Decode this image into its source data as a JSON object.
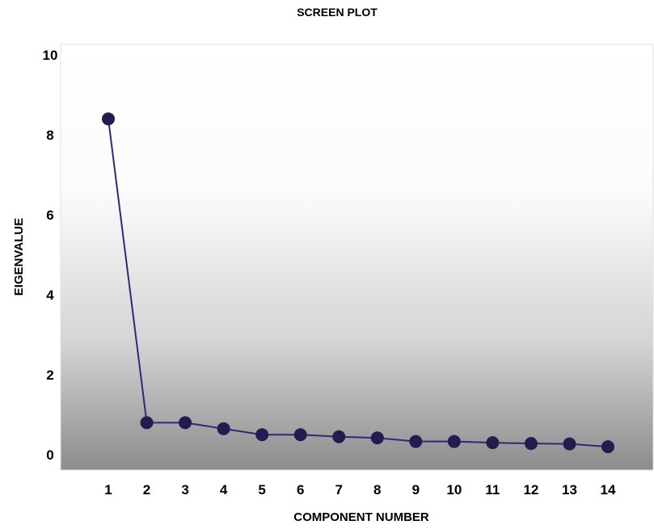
{
  "chart_data": {
    "type": "line",
    "title": "SCREEN PLOT",
    "xlabel": "COMPONENT NUMBER",
    "ylabel": "EIGENVALUE",
    "x": [
      1,
      2,
      3,
      4,
      5,
      6,
      7,
      8,
      9,
      10,
      11,
      12,
      13,
      14
    ],
    "values": [
      8.4,
      0.8,
      0.8,
      0.65,
      0.5,
      0.5,
      0.45,
      0.42,
      0.33,
      0.33,
      0.3,
      0.28,
      0.27,
      0.2
    ],
    "ylim": [
      0,
      10
    ],
    "yticks": [
      0,
      2,
      4,
      6,
      8,
      10
    ],
    "xticks": [
      1,
      2,
      3,
      4,
      5,
      6,
      7,
      8,
      9,
      10,
      11,
      12,
      13,
      14
    ],
    "grid": false,
    "legend": "none",
    "colors": {
      "line": "#2e2a78",
      "marker": "#211d4f",
      "plot_top": "#ffffff",
      "plot_bottom": "#8c8c8c",
      "plot_border": "#e0e0e0"
    }
  }
}
